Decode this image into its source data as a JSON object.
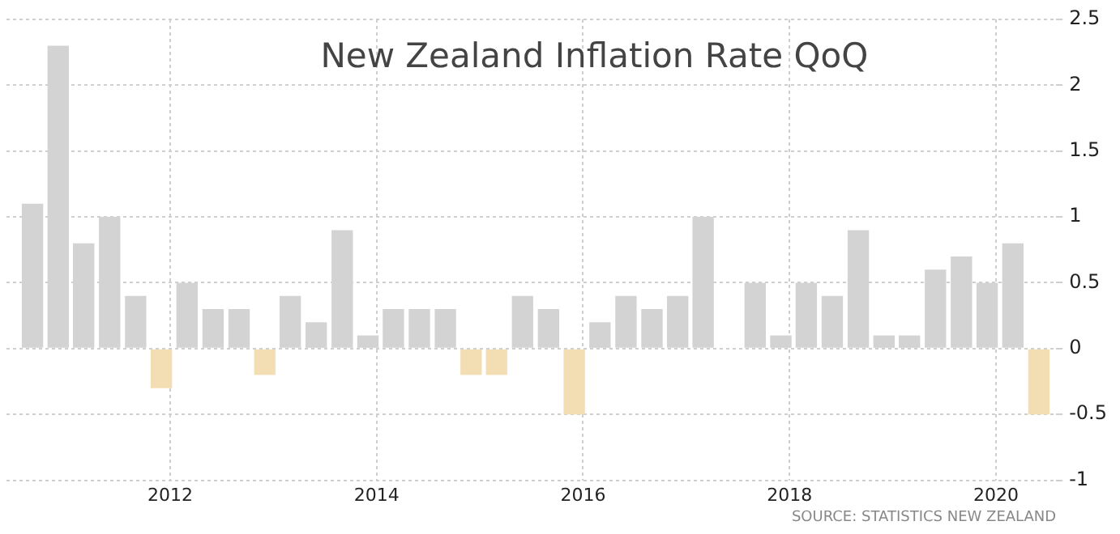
{
  "chart_data": {
    "type": "bar",
    "title": "New Zealand Inflation Rate QoQ",
    "annotations": [
      "SOURCE: STATISTICS NEW ZEALAND"
    ],
    "x": [
      "2010-09",
      "2010-12",
      "2011-03",
      "2011-06",
      "2011-09",
      "2011-12",
      "2012-03",
      "2012-06",
      "2012-09",
      "2012-12",
      "2013-03",
      "2013-06",
      "2013-09",
      "2013-12",
      "2014-03",
      "2014-06",
      "2014-09",
      "2014-12",
      "2015-03",
      "2015-06",
      "2015-09",
      "2015-12",
      "2016-03",
      "2016-06",
      "2016-09",
      "2016-12",
      "2017-03",
      "2017-06",
      "2017-09",
      "2017-12",
      "2018-03",
      "2018-06",
      "2018-09",
      "2018-12",
      "2019-03",
      "2019-06",
      "2019-09",
      "2019-12",
      "2020-03",
      "2020-06"
    ],
    "values": [
      1.1,
      2.3,
      0.8,
      1.0,
      0.4,
      -0.3,
      0.5,
      0.3,
      0.3,
      -0.2,
      0.4,
      0.2,
      0.9,
      0.1,
      0.3,
      0.3,
      0.3,
      -0.2,
      -0.2,
      0.4,
      0.3,
      -0.5,
      0.2,
      0.4,
      0.3,
      0.4,
      1.0,
      0.0,
      0.5,
      0.1,
      0.5,
      0.4,
      0.9,
      0.1,
      0.1,
      0.6,
      0.7,
      0.5,
      0.8,
      -0.5
    ],
    "colors": [
      "#d3d3d3",
      "#d3d3d3",
      "#d3d3d3",
      "#d3d3d3",
      "#d3d3d3",
      "#f3deb3",
      "#d3d3d3",
      "#d3d3d3",
      "#d3d3d3",
      "#f3deb3",
      "#d3d3d3",
      "#d3d3d3",
      "#d3d3d3",
      "#d3d3d3",
      "#d3d3d3",
      "#d3d3d3",
      "#d3d3d3",
      "#f3deb3",
      "#f3deb3",
      "#d3d3d3",
      "#d3d3d3",
      "#f3deb3",
      "#d3d3d3",
      "#d3d3d3",
      "#d3d3d3",
      "#d3d3d3",
      "#d3d3d3",
      "#d3d3d3",
      "#d3d3d3",
      "#d3d3d3",
      "#d3d3d3",
      "#d3d3d3",
      "#d3d3d3",
      "#d3d3d3",
      "#d3d3d3",
      "#d3d3d3",
      "#d3d3d3",
      "#d3d3d3",
      "#d3d3d3",
      "#f3deb3"
    ],
    "xlim": [
      "2010-06",
      "2020-08"
    ],
    "xticks": [
      "2012",
      "2014",
      "2016",
      "2018",
      "2020"
    ],
    "ylim": [
      -1,
      2.5
    ],
    "yticks": [
      -1,
      -0.5,
      0,
      0.5,
      1,
      1.5,
      2,
      2.5
    ],
    "grid": true,
    "legend": false
  }
}
